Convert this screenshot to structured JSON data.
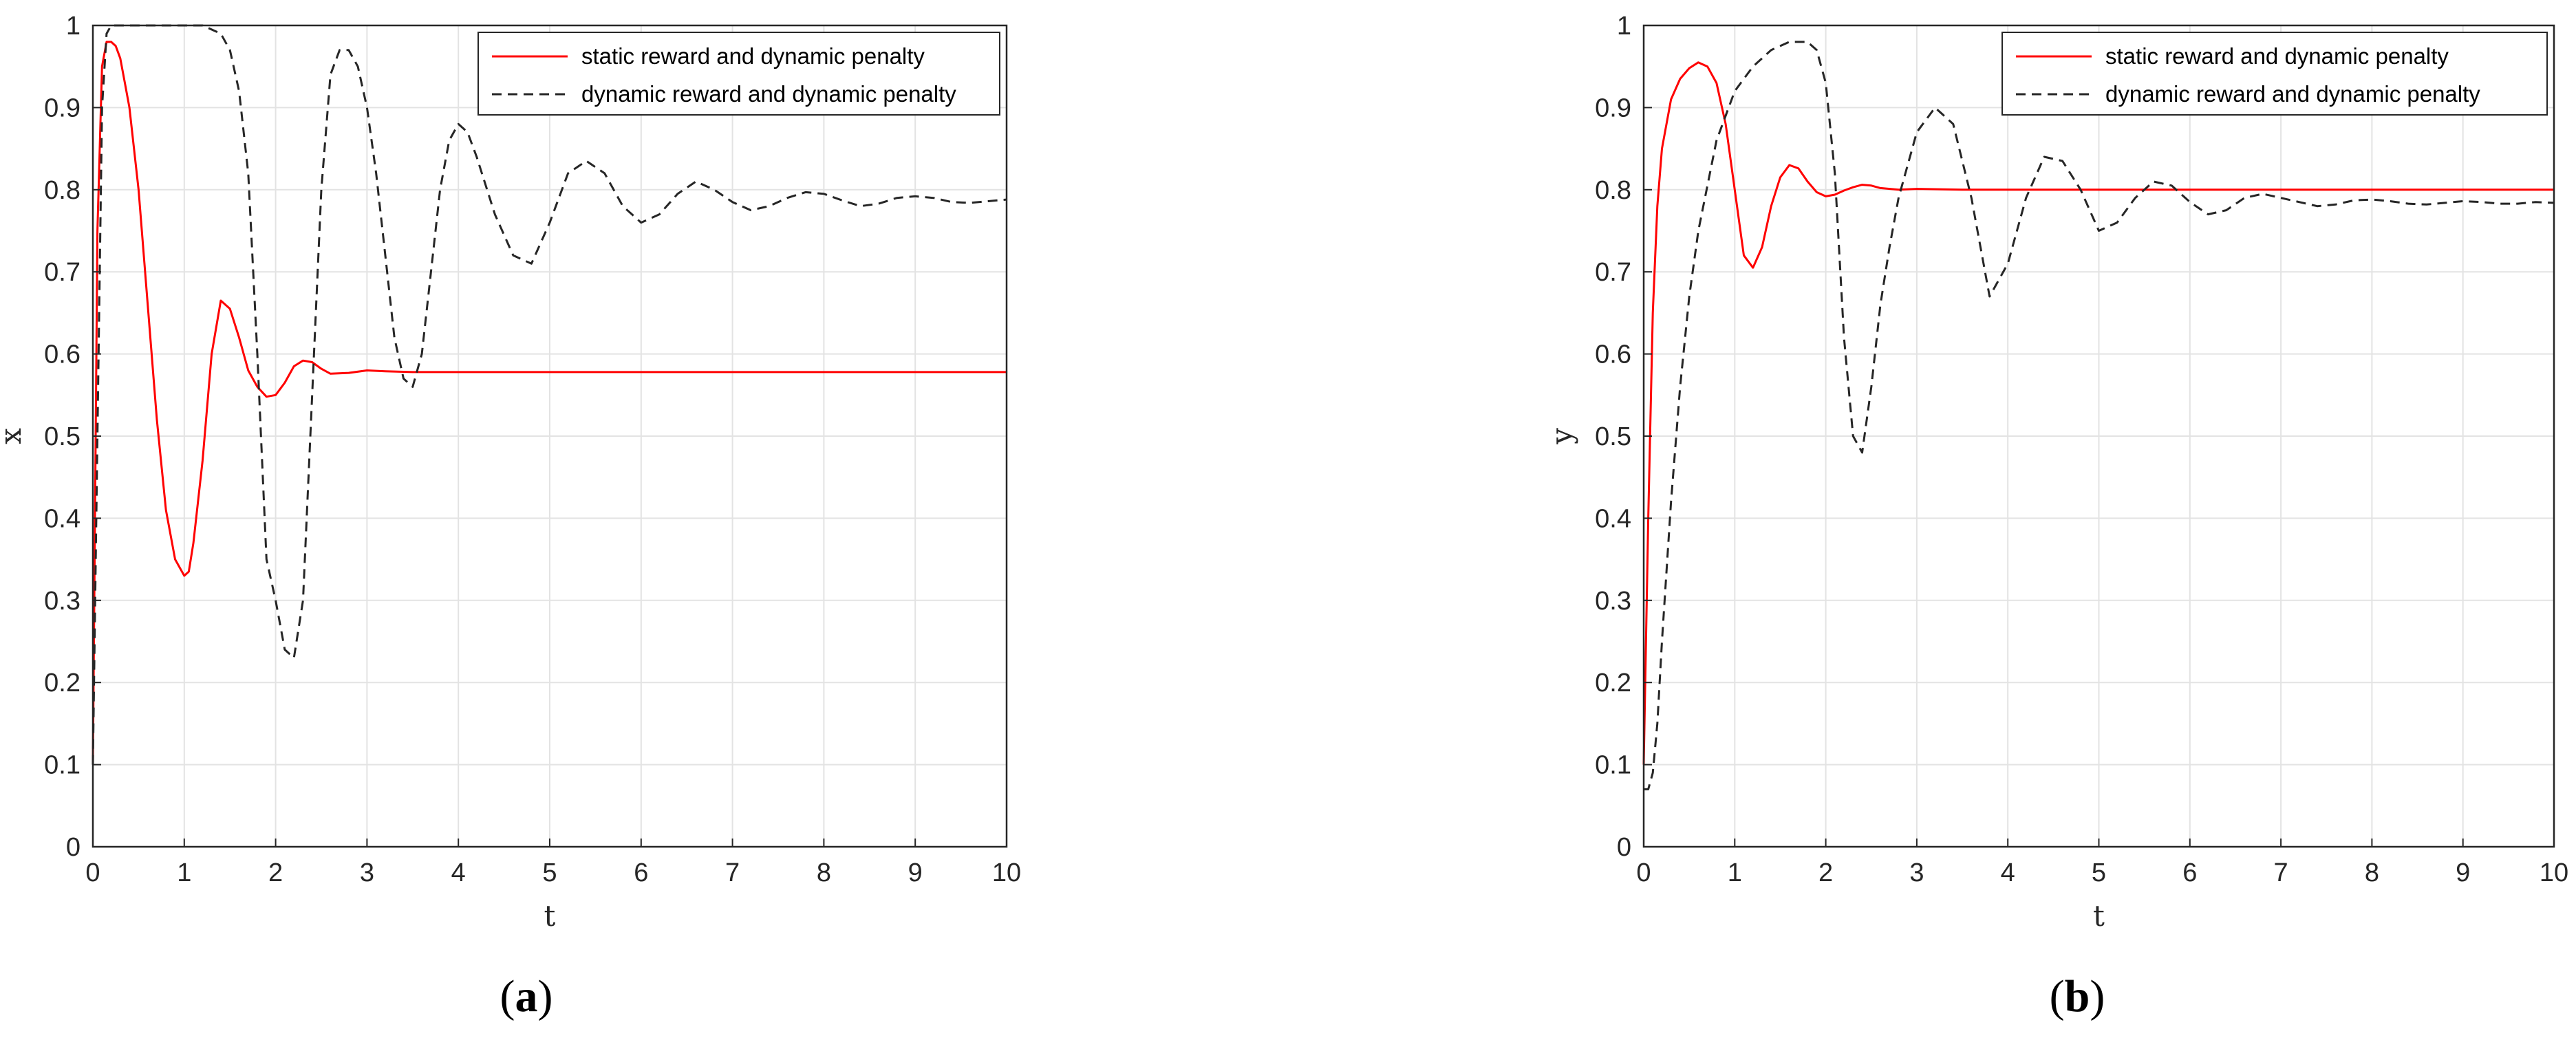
{
  "figure": {
    "panels": [
      {
        "caption_open": "(",
        "caption_letter": "a",
        "caption_close": ")"
      },
      {
        "caption_open": "(",
        "caption_letter": "b",
        "caption_close": ")"
      }
    ]
  },
  "chart_data": [
    {
      "type": "line",
      "title": "",
      "xlabel": "t",
      "ylabel": "x",
      "xlim": [
        0,
        10
      ],
      "ylim": [
        0,
        1
      ],
      "xticks": [
        "0",
        "1",
        "2",
        "3",
        "4",
        "5",
        "6",
        "7",
        "8",
        "9",
        "10"
      ],
      "yticks": [
        "0",
        "0.1",
        "0.2",
        "0.3",
        "0.4",
        "0.5",
        "0.6",
        "0.7",
        "0.8",
        "0.9",
        "1"
      ],
      "grid": true,
      "legend_position": "top-right",
      "series": [
        {
          "name": "static reward and dynamic penalty",
          "color": "#ff0000",
          "style": "solid",
          "x": [
            0,
            0.05,
            0.1,
            0.15,
            0.2,
            0.25,
            0.3,
            0.35,
            0.4,
            0.5,
            0.6,
            0.7,
            0.8,
            0.9,
            1.0,
            1.05,
            1.1,
            1.2,
            1.3,
            1.4,
            1.5,
            1.6,
            1.7,
            1.8,
            1.9,
            2.0,
            2.1,
            2.2,
            2.3,
            2.4,
            2.5,
            2.6,
            2.8,
            3.0,
            3.2,
            3.5,
            4,
            5,
            6,
            7,
            8,
            9,
            10
          ],
          "y": [
            0.1,
            0.75,
            0.95,
            0.98,
            0.98,
            0.975,
            0.96,
            0.93,
            0.9,
            0.8,
            0.66,
            0.52,
            0.41,
            0.35,
            0.33,
            0.335,
            0.37,
            0.47,
            0.6,
            0.665,
            0.655,
            0.62,
            0.58,
            0.56,
            0.548,
            0.55,
            0.565,
            0.585,
            0.592,
            0.59,
            0.582,
            0.576,
            0.577,
            0.58,
            0.579,
            0.578,
            0.578,
            0.578,
            0.578,
            0.578,
            0.578,
            0.578,
            0.578
          ]
        },
        {
          "name": "dynamic reward and dynamic penalty",
          "color": "#262626",
          "style": "dashed",
          "x": [
            0,
            0.05,
            0.1,
            0.15,
            0.2,
            0.3,
            0.5,
            0.8,
            1.0,
            1.2,
            1.4,
            1.5,
            1.6,
            1.7,
            1.8,
            1.9,
            2.0,
            2.1,
            2.2,
            2.3,
            2.4,
            2.5,
            2.6,
            2.7,
            2.8,
            2.9,
            3.0,
            3.1,
            3.2,
            3.3,
            3.4,
            3.5,
            3.6,
            3.7,
            3.8,
            3.9,
            4.0,
            4.1,
            4.2,
            4.4,
            4.6,
            4.8,
            5.0,
            5.2,
            5.4,
            5.6,
            5.8,
            6.0,
            6.2,
            6.4,
            6.6,
            6.8,
            7.0,
            7.2,
            7.4,
            7.6,
            7.8,
            8.0,
            8.2,
            8.4,
            8.6,
            8.8,
            9.0,
            9.2,
            9.4,
            9.6,
            9.8,
            10
          ],
          "y": [
            0.1,
            0.5,
            0.9,
            0.99,
            1.0,
            1.0,
            1.0,
            1.0,
            1.0,
            1.0,
            0.99,
            0.97,
            0.92,
            0.82,
            0.6,
            0.35,
            0.3,
            0.24,
            0.23,
            0.3,
            0.55,
            0.8,
            0.94,
            0.97,
            0.97,
            0.95,
            0.9,
            0.82,
            0.72,
            0.62,
            0.57,
            0.56,
            0.6,
            0.7,
            0.8,
            0.86,
            0.88,
            0.87,
            0.84,
            0.77,
            0.72,
            0.71,
            0.76,
            0.82,
            0.835,
            0.82,
            0.78,
            0.76,
            0.77,
            0.795,
            0.81,
            0.8,
            0.785,
            0.775,
            0.78,
            0.79,
            0.797,
            0.795,
            0.787,
            0.78,
            0.783,
            0.79,
            0.792,
            0.79,
            0.785,
            0.784,
            0.786,
            0.788
          ]
        }
      ]
    },
    {
      "type": "line",
      "title": "",
      "xlabel": "t",
      "ylabel": "y",
      "xlim": [
        0,
        10
      ],
      "ylim": [
        0,
        1
      ],
      "xticks": [
        "0",
        "1",
        "2",
        "3",
        "4",
        "5",
        "6",
        "7",
        "8",
        "9",
        "10"
      ],
      "yticks": [
        "0",
        "0.1",
        "0.2",
        "0.3",
        "0.4",
        "0.5",
        "0.6",
        "0.7",
        "0.8",
        "0.9",
        "1"
      ],
      "grid": true,
      "legend_position": "top-right",
      "series": [
        {
          "name": "static reward and dynamic penalty",
          "color": "#ff0000",
          "style": "solid",
          "x": [
            0,
            0.05,
            0.1,
            0.15,
            0.2,
            0.3,
            0.4,
            0.5,
            0.6,
            0.7,
            0.8,
            0.9,
            1.0,
            1.1,
            1.2,
            1.3,
            1.4,
            1.5,
            1.6,
            1.7,
            1.8,
            1.9,
            2.0,
            2.1,
            2.2,
            2.3,
            2.4,
            2.5,
            2.6,
            2.8,
            3.0,
            3.5,
            4,
            5,
            6,
            7,
            8,
            9,
            10
          ],
          "y": [
            0.1,
            0.4,
            0.65,
            0.78,
            0.85,
            0.91,
            0.935,
            0.948,
            0.955,
            0.95,
            0.93,
            0.88,
            0.8,
            0.72,
            0.705,
            0.73,
            0.78,
            0.815,
            0.83,
            0.826,
            0.81,
            0.797,
            0.792,
            0.794,
            0.799,
            0.803,
            0.806,
            0.805,
            0.802,
            0.8,
            0.801,
            0.8,
            0.8,
            0.8,
            0.8,
            0.8,
            0.8,
            0.8,
            0.8
          ]
        },
        {
          "name": "dynamic reward and dynamic penalty",
          "color": "#262626",
          "style": "dashed",
          "x": [
            0,
            0.05,
            0.1,
            0.15,
            0.2,
            0.3,
            0.4,
            0.5,
            0.6,
            0.8,
            1.0,
            1.2,
            1.4,
            1.6,
            1.8,
            1.9,
            2.0,
            2.1,
            2.2,
            2.3,
            2.4,
            2.5,
            2.6,
            2.7,
            2.8,
            3.0,
            3.2,
            3.4,
            3.6,
            3.8,
            4.0,
            4.2,
            4.4,
            4.6,
            4.8,
            5.0,
            5.2,
            5.4,
            5.6,
            5.8,
            6.0,
            6.2,
            6.4,
            6.6,
            6.8,
            7.0,
            7.2,
            7.4,
            7.6,
            7.8,
            8.0,
            8.2,
            8.4,
            8.6,
            8.8,
            9.0,
            9.2,
            9.4,
            9.6,
            9.8,
            10
          ],
          "y": [
            0.07,
            0.07,
            0.09,
            0.15,
            0.25,
            0.42,
            0.56,
            0.67,
            0.75,
            0.86,
            0.92,
            0.95,
            0.97,
            0.98,
            0.98,
            0.97,
            0.93,
            0.82,
            0.62,
            0.5,
            0.48,
            0.56,
            0.66,
            0.73,
            0.79,
            0.87,
            0.9,
            0.88,
            0.79,
            0.67,
            0.71,
            0.79,
            0.84,
            0.835,
            0.8,
            0.75,
            0.76,
            0.79,
            0.81,
            0.805,
            0.785,
            0.77,
            0.775,
            0.79,
            0.795,
            0.79,
            0.785,
            0.78,
            0.782,
            0.787,
            0.788,
            0.786,
            0.783,
            0.782,
            0.784,
            0.786,
            0.785,
            0.783,
            0.783,
            0.785,
            0.784
          ]
        }
      ]
    }
  ]
}
